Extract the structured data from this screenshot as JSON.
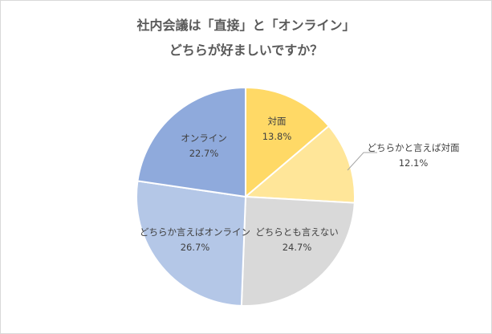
{
  "chart_data": {
    "type": "pie",
    "title_line1": "社内会議は「直接」と「オンライン」",
    "title_line2": "どちらが好ましいですか？",
    "slices": [
      {
        "label": "対面",
        "value": 13.8,
        "value_text": "13.8%",
        "color": "#ffd966"
      },
      {
        "label": "どちらかと言えば対面",
        "value": 12.1,
        "value_text": "12.1%",
        "color": "#ffe699"
      },
      {
        "label": "どちらとも言えない",
        "value": 24.7,
        "value_text": "24.7%",
        "color": "#d9d9d9"
      },
      {
        "label": "どちらか言えばオンライン",
        "value": 26.7,
        "value_text": "26.7%",
        "color": "#b4c7e7"
      },
      {
        "label": "オンライン",
        "value": 22.7,
        "value_text": "22.7%",
        "color": "#8faadc"
      }
    ],
    "start": "12 o'clock",
    "direction": "clockwise",
    "legend": "none"
  }
}
